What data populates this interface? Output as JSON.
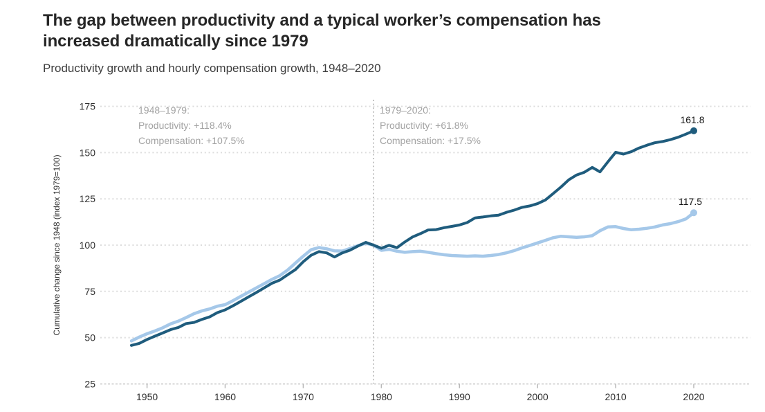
{
  "header": {
    "title_line1": "The gap between productivity and a typical worker’s compensation has",
    "title_line2": "increased dramatically since 1979",
    "subtitle": "Productivity growth and hourly compensation growth, 1948–2020"
  },
  "chart_data": {
    "type": "line",
    "title": "The gap between productivity and a typical worker’s compensation has increased dramatically since 1979",
    "xlabel": "",
    "ylabel": "Cumulative change since 1948 (index 1979=100)",
    "ylim": [
      25,
      177
    ],
    "xlim": [
      1944,
      2027
    ],
    "grid": true,
    "legend": "none",
    "vline_x": 1979,
    "x_ticks": [
      1950,
      1960,
      1970,
      1980,
      1990,
      2000,
      2010,
      2020
    ],
    "y_ticks": [
      175,
      150,
      125,
      100,
      75,
      50,
      25
    ],
    "x": [
      1948,
      1949,
      1950,
      1951,
      1952,
      1953,
      1954,
      1955,
      1956,
      1957,
      1958,
      1959,
      1960,
      1961,
      1962,
      1963,
      1964,
      1965,
      1966,
      1967,
      1968,
      1969,
      1970,
      1971,
      1972,
      1973,
      1974,
      1975,
      1976,
      1977,
      1978,
      1979,
      1980,
      1981,
      1982,
      1983,
      1984,
      1985,
      1986,
      1987,
      1988,
      1989,
      1990,
      1991,
      1992,
      1993,
      1994,
      1995,
      1996,
      1997,
      1998,
      1999,
      2000,
      2001,
      2002,
      2003,
      2004,
      2005,
      2006,
      2007,
      2008,
      2009,
      2010,
      2011,
      2012,
      2013,
      2014,
      2015,
      2016,
      2017,
      2018,
      2019,
      2020
    ],
    "series": [
      {
        "name": "Productivity",
        "color": "#1f5c7d",
        "end_label": "161.8",
        "values": [
          45.8,
          46.9,
          49.0,
          50.8,
          52.5,
          54.3,
          55.5,
          57.6,
          58.2,
          59.8,
          61.2,
          63.5,
          65.0,
          67.2,
          69.6,
          72.0,
          74.4,
          76.9,
          79.4,
          81.1,
          84.0,
          86.8,
          91.0,
          94.5,
          96.5,
          95.8,
          93.6,
          95.8,
          97.3,
          99.5,
          101.5,
          100.0,
          98.3,
          99.9,
          98.6,
          101.7,
          104.4,
          106.2,
          108.2,
          108.4,
          109.4,
          110.1,
          110.9,
          112.2,
          114.7,
          115.2,
          115.8,
          116.2,
          117.7,
          118.9,
          120.4,
          121.2,
          122.4,
          124.4,
          127.9,
          131.4,
          135.3,
          137.9,
          139.4,
          142.0,
          139.6,
          145.0,
          150.2,
          149.2,
          150.5,
          152.5,
          154.0,
          155.3,
          156.0,
          157.0,
          158.3,
          160.0,
          161.8
        ]
      },
      {
        "name": "Compensation",
        "color": "#a5c8e9",
        "end_label": "117.5",
        "values": [
          48.2,
          50.3,
          52.1,
          53.6,
          55.3,
          57.4,
          58.9,
          60.8,
          62.9,
          64.4,
          65.5,
          67.0,
          67.8,
          70.0,
          72.3,
          74.6,
          76.9,
          79.2,
          81.5,
          83.5,
          86.5,
          90.3,
          94.0,
          97.5,
          98.7,
          98.0,
          96.9,
          96.8,
          98.2,
          99.7,
          101.0,
          100.0,
          97.2,
          97.7,
          96.7,
          96.1,
          96.5,
          96.7,
          96.1,
          95.4,
          94.8,
          94.4,
          94.2,
          94.0,
          94.2,
          94.0,
          94.4,
          94.9,
          95.8,
          97.0,
          98.5,
          99.8,
          101.2,
          102.6,
          104.0,
          104.8,
          104.5,
          104.2,
          104.5,
          105.1,
          107.8,
          109.8,
          110.0,
          109.0,
          108.3,
          108.6,
          109.1,
          109.8,
          110.9,
          111.6,
          112.7,
          114.2,
          117.5
        ]
      }
    ],
    "annotations": [
      {
        "lines": [
          "1948–1979:",
          "Productivity: +118.4%",
          "Compensation: +107.5%"
        ]
      },
      {
        "lines": [
          "1979–2020:",
          "Productivity: +61.8%",
          "Compensation: +17.5%"
        ]
      }
    ]
  }
}
